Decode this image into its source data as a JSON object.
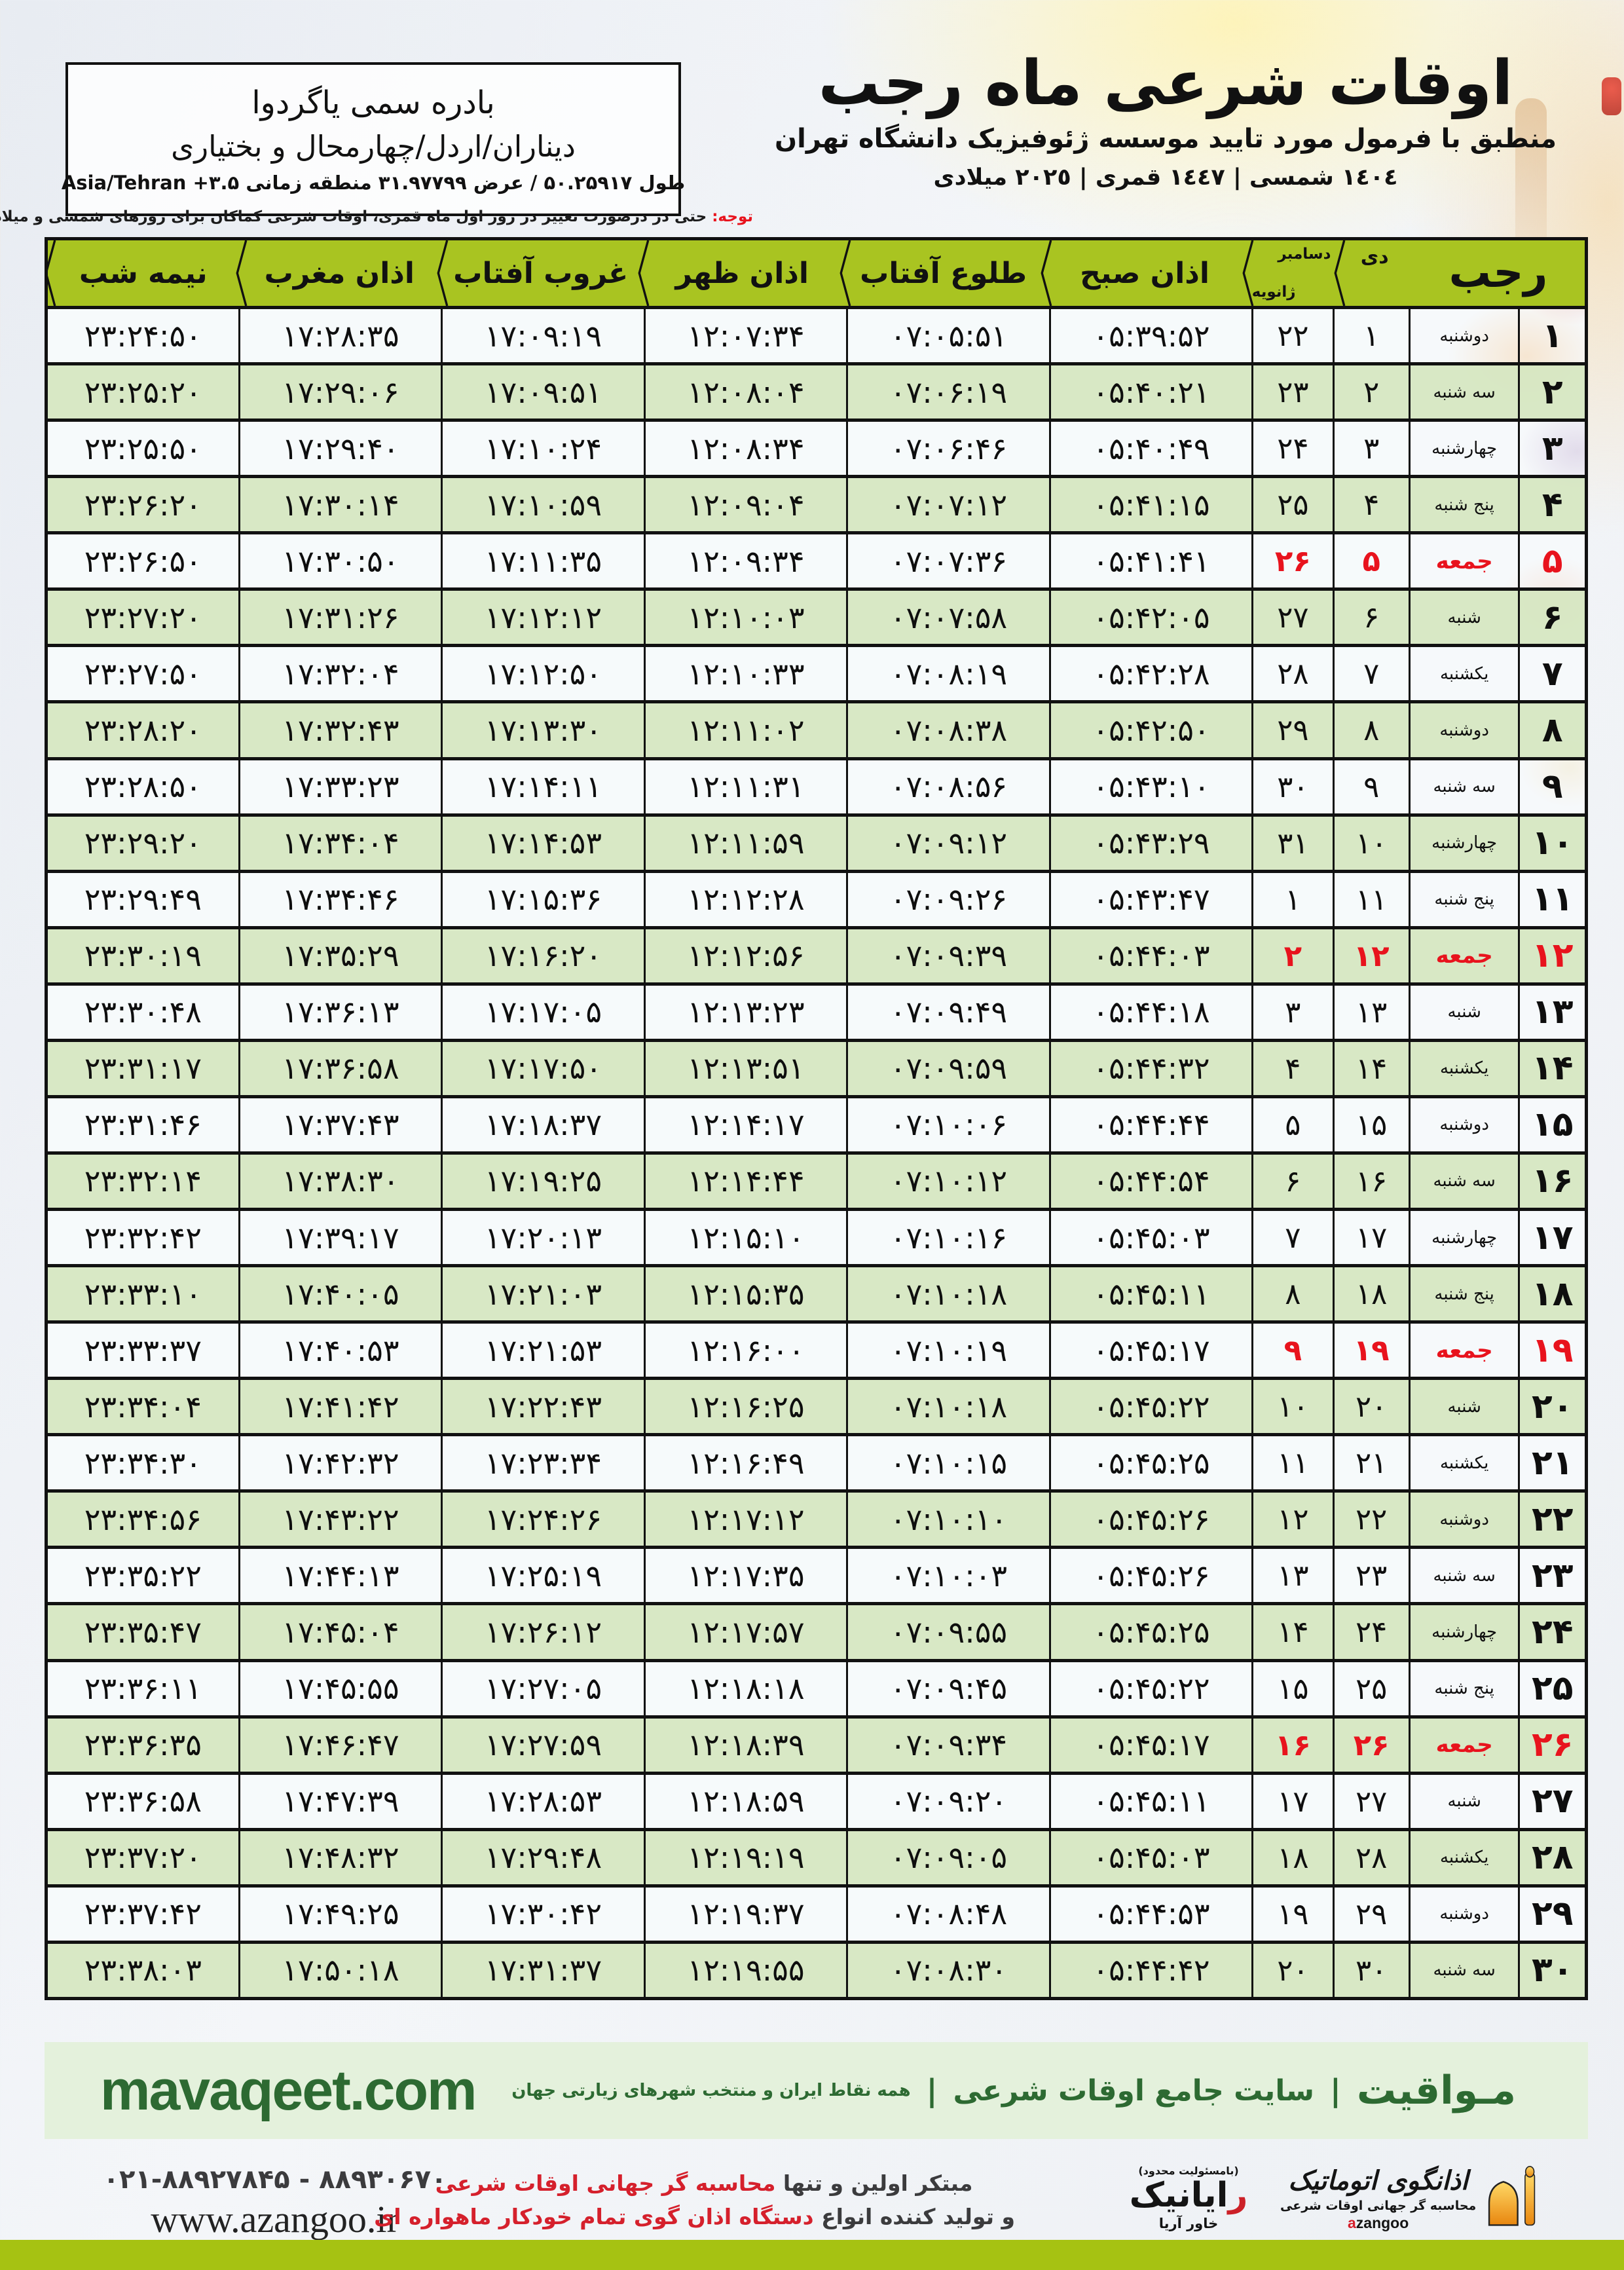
{
  "colors": {
    "header_green": "#a9c421",
    "row_green": "#d6e7c3",
    "friday_red": "#e8131d",
    "footer_green_dark": "#2d6a32",
    "footer_bar_bg": "#e4f1dc",
    "bottom_bar": "#a6c212"
  },
  "location_box": {
    "line1": "بادره سمی یاگردوا",
    "line2": "دیناران/اردل/چهارمحال و بختیاری",
    "line3": "طول ۵۰.۲۵۹۱۷ / عرض ۳۱.۹۷۷۹۹ منطقه زمانی ۳.۵+ Asia/Tehran"
  },
  "title_block": {
    "title": "اوقات شرعی ماه رجب",
    "subtitle": "منطبق با فرمول مورد تایید موسسه ژئوفیزیک دانشگاه تهران",
    "years": "١٤٠٤ شمسی | ١٤٤٧ قمری | ٢٠٢٥ میلادی"
  },
  "notice": {
    "label": "توجه:",
    "text": "حتی در درصورت تغییر در روز اول ماه قمری، اوقات شرعی کماکان برای روزهای شمسی و میلادی معتبر است."
  },
  "table": {
    "headers": {
      "rajab": "رجب",
      "dey": "دی",
      "greg_top": "دسامبر",
      "greg_bottom": "ژانویه",
      "sobh": "اذان صبح",
      "tolu": "طلوع آفتاب",
      "zohr": "اذان ظهر",
      "ghorub": "غروب آفتاب",
      "maghreb": "اذان مغرب",
      "nime": "نیمه شب"
    },
    "rows": [
      {
        "rajab": "۱",
        "weekday": "دوشنبه",
        "dey": "۱",
        "greg": "۲۲",
        "sobh": "۰۵:۳۹:۵۲",
        "tolu": "۰۷:۰۵:۵۱",
        "zohr": "۱۲:۰۷:۳۴",
        "ghorub": "۱۷:۰۹:۱۹",
        "maghreb": "۱۷:۲۸:۳۵",
        "nime": "۲۳:۲۴:۵۰",
        "friday": false
      },
      {
        "rajab": "۲",
        "weekday": "سه شنبه",
        "dey": "۲",
        "greg": "۲۳",
        "sobh": "۰۵:۴۰:۲۱",
        "tolu": "۰۷:۰۶:۱۹",
        "zohr": "۱۲:۰۸:۰۴",
        "ghorub": "۱۷:۰۹:۵۱",
        "maghreb": "۱۷:۲۹:۰۶",
        "nime": "۲۳:۲۵:۲۰",
        "friday": false
      },
      {
        "rajab": "۳",
        "weekday": "چهارشنبه",
        "dey": "۳",
        "greg": "۲۴",
        "sobh": "۰۵:۴۰:۴۹",
        "tolu": "۰۷:۰۶:۴۶",
        "zohr": "۱۲:۰۸:۳۴",
        "ghorub": "۱۷:۱۰:۲۴",
        "maghreb": "۱۷:۲۹:۴۰",
        "nime": "۲۳:۲۵:۵۰",
        "friday": false
      },
      {
        "rajab": "۴",
        "weekday": "پنج شنبه",
        "dey": "۴",
        "greg": "۲۵",
        "sobh": "۰۵:۴۱:۱۵",
        "tolu": "۰۷:۰۷:۱۲",
        "zohr": "۱۲:۰۹:۰۴",
        "ghorub": "۱۷:۱۰:۵۹",
        "maghreb": "۱۷:۳۰:۱۴",
        "nime": "۲۳:۲۶:۲۰",
        "friday": false
      },
      {
        "rajab": "۵",
        "weekday": "جمعه",
        "dey": "۵",
        "greg": "۲۶",
        "sobh": "۰۵:۴۱:۴۱",
        "tolu": "۰۷:۰۷:۳۶",
        "zohr": "۱۲:۰۹:۳۴",
        "ghorub": "۱۷:۱۱:۳۵",
        "maghreb": "۱۷:۳۰:۵۰",
        "nime": "۲۳:۲۶:۵۰",
        "friday": true
      },
      {
        "rajab": "۶",
        "weekday": "شنبه",
        "dey": "۶",
        "greg": "۲۷",
        "sobh": "۰۵:۴۲:۰۵",
        "tolu": "۰۷:۰۷:۵۸",
        "zohr": "۱۲:۱۰:۰۳",
        "ghorub": "۱۷:۱۲:۱۲",
        "maghreb": "۱۷:۳۱:۲۶",
        "nime": "۲۳:۲۷:۲۰",
        "friday": false
      },
      {
        "rajab": "۷",
        "weekday": "یکشنبه",
        "dey": "۷",
        "greg": "۲۸",
        "sobh": "۰۵:۴۲:۲۸",
        "tolu": "۰۷:۰۸:۱۹",
        "zohr": "۱۲:۱۰:۳۳",
        "ghorub": "۱۷:۱۲:۵۰",
        "maghreb": "۱۷:۳۲:۰۴",
        "nime": "۲۳:۲۷:۵۰",
        "friday": false
      },
      {
        "rajab": "۸",
        "weekday": "دوشنبه",
        "dey": "۸",
        "greg": "۲۹",
        "sobh": "۰۵:۴۲:۵۰",
        "tolu": "۰۷:۰۸:۳۸",
        "zohr": "۱۲:۱۱:۰۲",
        "ghorub": "۱۷:۱۳:۳۰",
        "maghreb": "۱۷:۳۲:۴۳",
        "nime": "۲۳:۲۸:۲۰",
        "friday": false
      },
      {
        "rajab": "۹",
        "weekday": "سه شنبه",
        "dey": "۹",
        "greg": "۳۰",
        "sobh": "۰۵:۴۳:۱۰",
        "tolu": "۰۷:۰۸:۵۶",
        "zohr": "۱۲:۱۱:۳۱",
        "ghorub": "۱۷:۱۴:۱۱",
        "maghreb": "۱۷:۳۳:۲۳",
        "nime": "۲۳:۲۸:۵۰",
        "friday": false
      },
      {
        "rajab": "۱۰",
        "weekday": "چهارشنبه",
        "dey": "۱۰",
        "greg": "۳۱",
        "sobh": "۰۵:۴۳:۲۹",
        "tolu": "۰۷:۰۹:۱۲",
        "zohr": "۱۲:۱۱:۵۹",
        "ghorub": "۱۷:۱۴:۵۳",
        "maghreb": "۱۷:۳۴:۰۴",
        "nime": "۲۳:۲۹:۲۰",
        "friday": false
      },
      {
        "rajab": "۱۱",
        "weekday": "پنج شنبه",
        "dey": "۱۱",
        "greg": "۱",
        "sobh": "۰۵:۴۳:۴۷",
        "tolu": "۰۷:۰۹:۲۶",
        "zohr": "۱۲:۱۲:۲۸",
        "ghorub": "۱۷:۱۵:۳۶",
        "maghreb": "۱۷:۳۴:۴۶",
        "nime": "۲۳:۲۹:۴۹",
        "friday": false
      },
      {
        "rajab": "۱۲",
        "weekday": "جمعه",
        "dey": "۱۲",
        "greg": "۲",
        "sobh": "۰۵:۴۴:۰۳",
        "tolu": "۰۷:۰۹:۳۹",
        "zohr": "۱۲:۱۲:۵۶",
        "ghorub": "۱۷:۱۶:۲۰",
        "maghreb": "۱۷:۳۵:۲۹",
        "nime": "۲۳:۳۰:۱۹",
        "friday": true
      },
      {
        "rajab": "۱۳",
        "weekday": "شنبه",
        "dey": "۱۳",
        "greg": "۳",
        "sobh": "۰۵:۴۴:۱۸",
        "tolu": "۰۷:۰۹:۴۹",
        "zohr": "۱۲:۱۳:۲۳",
        "ghorub": "۱۷:۱۷:۰۵",
        "maghreb": "۱۷:۳۶:۱۳",
        "nime": "۲۳:۳۰:۴۸",
        "friday": false
      },
      {
        "rajab": "۱۴",
        "weekday": "یکشنبه",
        "dey": "۱۴",
        "greg": "۴",
        "sobh": "۰۵:۴۴:۳۲",
        "tolu": "۰۷:۰۹:۵۹",
        "zohr": "۱۲:۱۳:۵۱",
        "ghorub": "۱۷:۱۷:۵۰",
        "maghreb": "۱۷:۳۶:۵۸",
        "nime": "۲۳:۳۱:۱۷",
        "friday": false
      },
      {
        "rajab": "۱۵",
        "weekday": "دوشنبه",
        "dey": "۱۵",
        "greg": "۵",
        "sobh": "۰۵:۴۴:۴۴",
        "tolu": "۰۷:۱۰:۰۶",
        "zohr": "۱۲:۱۴:۱۷",
        "ghorub": "۱۷:۱۸:۳۷",
        "maghreb": "۱۷:۳۷:۴۳",
        "nime": "۲۳:۳۱:۴۶",
        "friday": false
      },
      {
        "rajab": "۱۶",
        "weekday": "سه شنبه",
        "dey": "۱۶",
        "greg": "۶",
        "sobh": "۰۵:۴۴:۵۴",
        "tolu": "۰۷:۱۰:۱۲",
        "zohr": "۱۲:۱۴:۴۴",
        "ghorub": "۱۷:۱۹:۲۵",
        "maghreb": "۱۷:۳۸:۳۰",
        "nime": "۲۳:۳۲:۱۴",
        "friday": false
      },
      {
        "rajab": "۱۷",
        "weekday": "چهارشنبه",
        "dey": "۱۷",
        "greg": "۷",
        "sobh": "۰۵:۴۵:۰۳",
        "tolu": "۰۷:۱۰:۱۶",
        "zohr": "۱۲:۱۵:۱۰",
        "ghorub": "۱۷:۲۰:۱۳",
        "maghreb": "۱۷:۳۹:۱۷",
        "nime": "۲۳:۳۲:۴۲",
        "friday": false
      },
      {
        "rajab": "۱۸",
        "weekday": "پنج شنبه",
        "dey": "۱۸",
        "greg": "۸",
        "sobh": "۰۵:۴۵:۱۱",
        "tolu": "۰۷:۱۰:۱۸",
        "zohr": "۱۲:۱۵:۳۵",
        "ghorub": "۱۷:۲۱:۰۳",
        "maghreb": "۱۷:۴۰:۰۵",
        "nime": "۲۳:۳۳:۱۰",
        "friday": false
      },
      {
        "rajab": "۱۹",
        "weekday": "جمعه",
        "dey": "۱۹",
        "greg": "۹",
        "sobh": "۰۵:۴۵:۱۷",
        "tolu": "۰۷:۱۰:۱۹",
        "zohr": "۱۲:۱۶:۰۰",
        "ghorub": "۱۷:۲۱:۵۳",
        "maghreb": "۱۷:۴۰:۵۳",
        "nime": "۲۳:۳۳:۳۷",
        "friday": true
      },
      {
        "rajab": "۲۰",
        "weekday": "شنبه",
        "dey": "۲۰",
        "greg": "۱۰",
        "sobh": "۰۵:۴۵:۲۲",
        "tolu": "۰۷:۱۰:۱۸",
        "zohr": "۱۲:۱۶:۲۵",
        "ghorub": "۱۷:۲۲:۴۳",
        "maghreb": "۱۷:۴۱:۴۲",
        "nime": "۲۳:۳۴:۰۴",
        "friday": false
      },
      {
        "rajab": "۲۱",
        "weekday": "یکشنبه",
        "dey": "۲۱",
        "greg": "۱۱",
        "sobh": "۰۵:۴۵:۲۵",
        "tolu": "۰۷:۱۰:۱۵",
        "zohr": "۱۲:۱۶:۴۹",
        "ghorub": "۱۷:۲۳:۳۴",
        "maghreb": "۱۷:۴۲:۳۲",
        "nime": "۲۳:۳۴:۳۰",
        "friday": false
      },
      {
        "rajab": "۲۲",
        "weekday": "دوشنبه",
        "dey": "۲۲",
        "greg": "۱۲",
        "sobh": "۰۵:۴۵:۲۶",
        "tolu": "۰۷:۱۰:۱۰",
        "zohr": "۱۲:۱۷:۱۲",
        "ghorub": "۱۷:۲۴:۲۶",
        "maghreb": "۱۷:۴۳:۲۲",
        "nime": "۲۳:۳۴:۵۶",
        "friday": false
      },
      {
        "rajab": "۲۳",
        "weekday": "سه شنبه",
        "dey": "۲۳",
        "greg": "۱۳",
        "sobh": "۰۵:۴۵:۲۶",
        "tolu": "۰۷:۱۰:۰۳",
        "zohr": "۱۲:۱۷:۳۵",
        "ghorub": "۱۷:۲۵:۱۹",
        "maghreb": "۱۷:۴۴:۱۳",
        "nime": "۲۳:۳۵:۲۲",
        "friday": false
      },
      {
        "rajab": "۲۴",
        "weekday": "چهارشنبه",
        "dey": "۲۴",
        "greg": "۱۴",
        "sobh": "۰۵:۴۵:۲۵",
        "tolu": "۰۷:۰۹:۵۵",
        "zohr": "۱۲:۱۷:۵۷",
        "ghorub": "۱۷:۲۶:۱۲",
        "maghreb": "۱۷:۴۵:۰۴",
        "nime": "۲۳:۳۵:۴۷",
        "friday": false
      },
      {
        "rajab": "۲۵",
        "weekday": "پنج شنبه",
        "dey": "۲۵",
        "greg": "۱۵",
        "sobh": "۰۵:۴۵:۲۲",
        "tolu": "۰۷:۰۹:۴۵",
        "zohr": "۱۲:۱۸:۱۸",
        "ghorub": "۱۷:۲۷:۰۵",
        "maghreb": "۱۷:۴۵:۵۵",
        "nime": "۲۳:۳۶:۱۱",
        "friday": false
      },
      {
        "rajab": "۲۶",
        "weekday": "جمعه",
        "dey": "۲۶",
        "greg": "۱۶",
        "sobh": "۰۵:۴۵:۱۷",
        "tolu": "۰۷:۰۹:۳۴",
        "zohr": "۱۲:۱۸:۳۹",
        "ghorub": "۱۷:۲۷:۵۹",
        "maghreb": "۱۷:۴۶:۴۷",
        "nime": "۲۳:۳۶:۳۵",
        "friday": true
      },
      {
        "rajab": "۲۷",
        "weekday": "شنبه",
        "dey": "۲۷",
        "greg": "۱۷",
        "sobh": "۰۵:۴۵:۱۱",
        "tolu": "۰۷:۰۹:۲۰",
        "zohr": "۱۲:۱۸:۵۹",
        "ghorub": "۱۷:۲۸:۵۳",
        "maghreb": "۱۷:۴۷:۳۹",
        "nime": "۲۳:۳۶:۵۸",
        "friday": false
      },
      {
        "rajab": "۲۸",
        "weekday": "یکشنبه",
        "dey": "۲۸",
        "greg": "۱۸",
        "sobh": "۰۵:۴۵:۰۳",
        "tolu": "۰۷:۰۹:۰۵",
        "zohr": "۱۲:۱۹:۱۹",
        "ghorub": "۱۷:۲۹:۴۸",
        "maghreb": "۱۷:۴۸:۳۲",
        "nime": "۲۳:۳۷:۲۰",
        "friday": false
      },
      {
        "rajab": "۲۹",
        "weekday": "دوشنبه",
        "dey": "۲۹",
        "greg": "۱۹",
        "sobh": "۰۵:۴۴:۵۳",
        "tolu": "۰۷:۰۸:۴۸",
        "zohr": "۱۲:۱۹:۳۷",
        "ghorub": "۱۷:۳۰:۴۲",
        "maghreb": "۱۷:۴۹:۲۵",
        "nime": "۲۳:۳۷:۴۲",
        "friday": false
      },
      {
        "rajab": "۳۰",
        "weekday": "سه شنبه",
        "dey": "۳۰",
        "greg": "۲۰",
        "sobh": "۰۵:۴۴:۴۲",
        "tolu": "۰۷:۰۸:۳۰",
        "zohr": "۱۲:۱۹:۵۵",
        "ghorub": "۱۷:۳۱:۳۷",
        "maghreb": "۱۷:۵۰:۱۸",
        "nime": "۲۳:۳۸:۰۳",
        "friday": false
      }
    ]
  },
  "mavaqeet_bar": {
    "domain": "mavaqeet.com",
    "brand": "مـواقیت",
    "sep": "|",
    "desc": "سایت جامع اوقات شرعی",
    "tagline": "همه نقاط ایران و منتخب شهرهای زیارتی جهان"
  },
  "footer": {
    "phone": "۰۲۱-۸۸۹۲۷۸۴۵ - ۸۸۹۳۰۶۷۰",
    "website": "www.azangoo.ir",
    "line1_black": "مبتکر اولین و تنها ",
    "line1_red": "محاسبه گر جهانی اوقات شرعی",
    "line2_black": "و تولید کننده انواع ",
    "line2_red": "دستگاه اذان گوی تمام خودکار ماهواره ای",
    "rayanik": {
      "top": "(بامسئولیت محدود)",
      "name_first": "ر",
      "name_rest": "ایانیک",
      "sub": "خاور آریا"
    },
    "azangoo": {
      "name": "اذانگوی اتوماتیک",
      "sub": "محاسبه گر جهانی اوقات شرعی",
      "latin_first": "a",
      "latin_rest": "zangoo"
    }
  }
}
